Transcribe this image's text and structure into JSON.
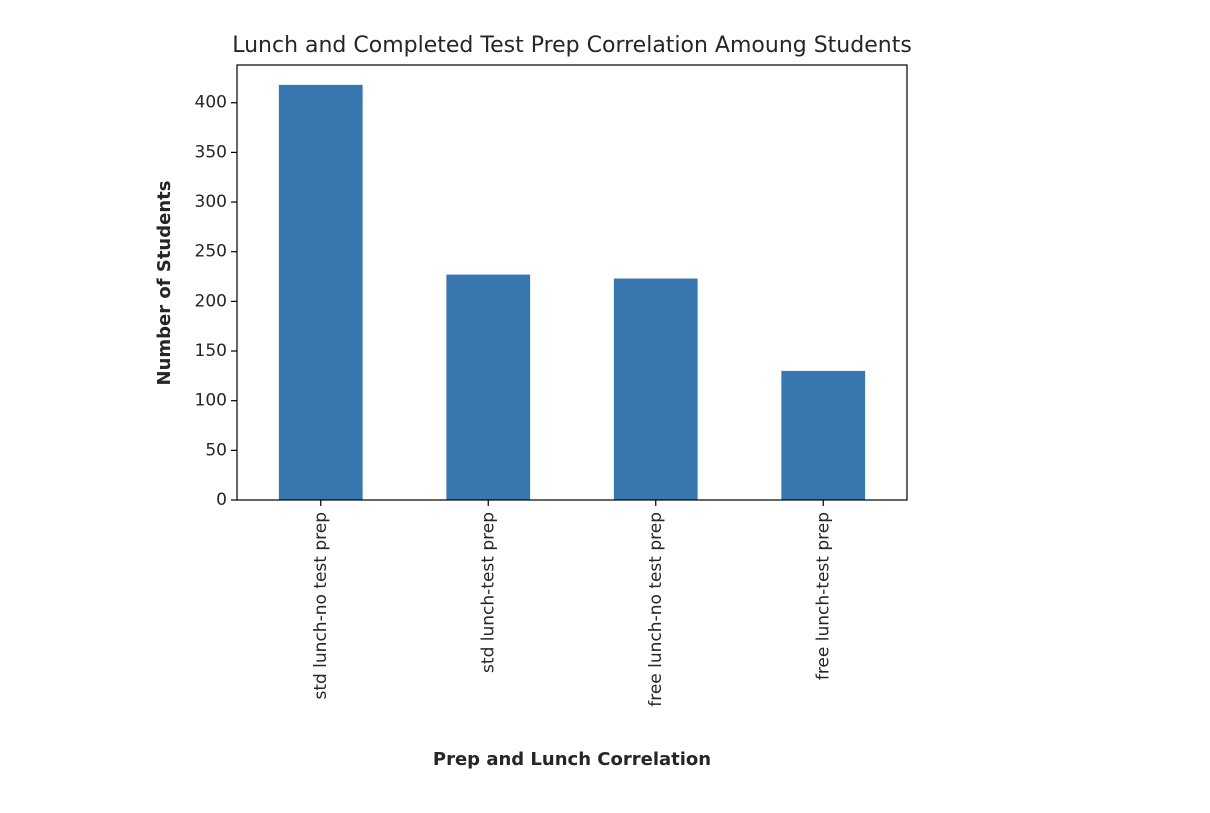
{
  "chart_data": {
    "type": "bar",
    "title": "Lunch and Completed Test Prep Correlation Amoung Students",
    "xlabel": "Prep and Lunch Correlation",
    "ylabel": "Number of Students",
    "categories": [
      "std lunch-no test prep",
      "std lunch-test prep",
      "free lunch-no test prep",
      "free lunch-test prep"
    ],
    "values": [
      418,
      227,
      223,
      130
    ],
    "ylim": [
      0,
      438
    ],
    "yticks": [
      "0",
      "50",
      "100",
      "150",
      "200",
      "250",
      "300",
      "350",
      "400"
    ],
    "bar_color": "#3776ae",
    "grid": false,
    "legend": "none"
  }
}
